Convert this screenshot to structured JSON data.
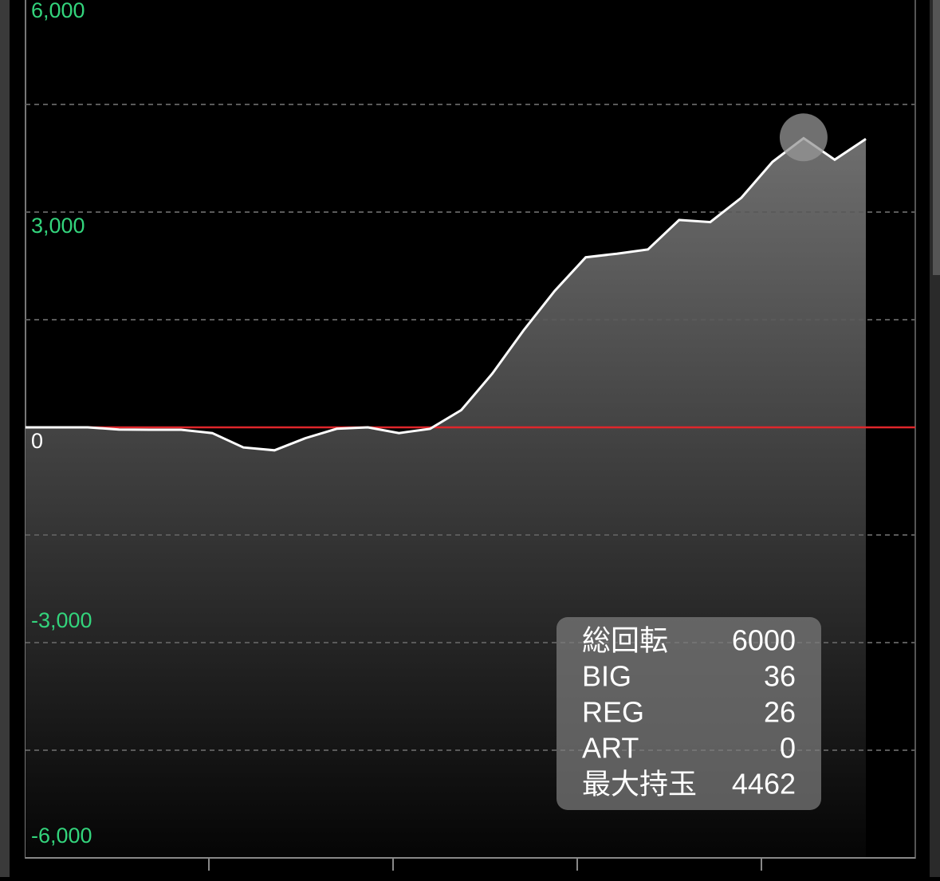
{
  "chart_data": {
    "type": "area",
    "categories": [
      null,
      null,
      null,
      null,
      null,
      null,
      null,
      null,
      null,
      null,
      null,
      null,
      null,
      null,
      null,
      null,
      null,
      null,
      null,
      null,
      null,
      null,
      null,
      null,
      null,
      null,
      null,
      null
    ],
    "values": [
      0,
      0,
      0,
      -30,
      -33,
      -33,
      -80,
      -280,
      -320,
      -150,
      -20,
      0,
      -80,
      -20,
      240,
      750,
      1350,
      1900,
      2370,
      2420,
      2480,
      2890,
      2860,
      3200,
      3700,
      4030,
      3730,
      4020
    ],
    "ylim": [
      -6000,
      6000
    ],
    "yticks": [
      {
        "value": -6000,
        "label": "-6,000"
      },
      {
        "value": -3000,
        "label": "-3,000"
      },
      0,
      {
        "value": 3000,
        "label": "3,000"
      },
      {
        "value": 6000,
        "label": "6,000"
      }
    ],
    "minor_yticks": [
      -4500,
      -1500,
      1500,
      4500
    ],
    "grid": true,
    "line_color": "#ffffff",
    "tick_label_color": "#33d47c",
    "zero_line_color": "#e0262b",
    "highlight_index": 25,
    "summary": [
      {
        "label": "総回転",
        "value": 6000
      },
      {
        "label": "BIG",
        "value": 36
      },
      {
        "label": "REG",
        "value": 26
      },
      {
        "label": "ART",
        "value": 0
      },
      {
        "label": "最大持玉",
        "value": 4462
      }
    ]
  }
}
